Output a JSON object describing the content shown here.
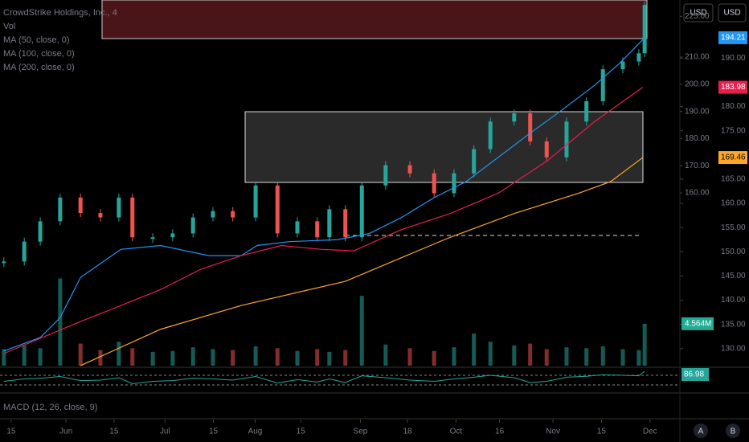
{
  "chart_data": {
    "type": "stock",
    "title": "CrowdStrike Holdings, Inc., 4",
    "currency_buttons": [
      "USD",
      "USD"
    ],
    "scale_buttons": [
      "A",
      "B"
    ],
    "macd_label": "MACD (12, 26, close, 9)",
    "xlim": [
      0,
      140
    ],
    "xticks": [
      {
        "value": 2.3,
        "label": "15"
      },
      {
        "value": 13.6,
        "label": "Jun"
      },
      {
        "value": 23.5,
        "label": "15"
      },
      {
        "value": 34,
        "label": "Jul"
      },
      {
        "value": 44,
        "label": "15"
      },
      {
        "value": 52.6,
        "label": "Aug"
      },
      {
        "value": 62,
        "label": "15"
      },
      {
        "value": 74.3,
        "label": "Sep"
      },
      {
        "value": 84,
        "label": "18"
      },
      {
        "value": 94,
        "label": "Oct"
      },
      {
        "value": 103,
        "label": "16"
      },
      {
        "value": 114,
        "label": "Nov"
      },
      {
        "value": 124,
        "label": "15"
      },
      {
        "value": 134,
        "label": "Dec"
      }
    ],
    "ylim": [
      124,
      202
    ],
    "yticks": [
      {
        "value": 130,
        "label": "130.00"
      },
      {
        "value": 135,
        "label": "135.00"
      },
      {
        "value": 140,
        "label": "140.00"
      },
      {
        "value": 145,
        "label": "145.00"
      },
      {
        "value": 150,
        "label": "150.00"
      },
      {
        "value": 155,
        "label": "155.00"
      },
      {
        "value": 160,
        "label": "160.00"
      },
      {
        "value": 165,
        "label": "165.00"
      },
      {
        "value": 175,
        "label": "175.00"
      },
      {
        "value": 180,
        "label": "180.00"
      },
      {
        "value": 190,
        "label": "190.00"
      }
    ],
    "y2lim": [
      92,
      231
    ],
    "y2ticks": [
      {
        "value": 160,
        "label": "160.00"
      },
      {
        "value": 170,
        "label": "170.00"
      },
      {
        "value": 180,
        "label": "180.00"
      },
      {
        "value": 190,
        "label": "190.00"
      },
      {
        "value": 200,
        "label": "200.00"
      },
      {
        "value": 210,
        "label": "210.00"
      },
      {
        "value": 225,
        "label": "225.00"
      }
    ],
    "price": {
      "up_color": "#26a69a",
      "down_color": "#ef5350",
      "x": [
        0.8,
        5.0,
        8.3,
        12.4,
        16.6,
        20.7,
        24.5,
        27.3,
        31.5,
        35.6,
        39.8,
        43.9,
        48.0,
        52.7,
        57.2,
        61.3,
        65.4,
        67.9,
        71.2,
        74.6,
        79.5,
        84.5,
        89.5,
        93.6,
        97.7,
        101.1,
        106.0,
        109.3,
        112.7,
        116.8,
        120.9,
        124.3,
        128.4,
        131.7,
        132.9
      ],
      "values": [
        148.0,
        152.1,
        156.3,
        161.2,
        158.0,
        157.1,
        161.2,
        153.0,
        153.0,
        153.8,
        157.1,
        158.4,
        157.1,
        163.7,
        153.8,
        156.3,
        153.0,
        158.8,
        153.0,
        163.7,
        167.9,
        166.2,
        162.1,
        166.2,
        171.2,
        176.9,
        178.6,
        172.8,
        169.5,
        176.9,
        181.1,
        187.7,
        189.3,
        191.0,
        201.0
      ]
    },
    "series": [
      {
        "name": "MA (50, close, 0)",
        "color": "#2196f3",
        "x": [
          0.8,
          8.3,
          12.4,
          16.6,
          24.9,
          33.1,
          43.1,
          49.7,
          53.0,
          59.6,
          69.6,
          76.2,
          82.8,
          89.5,
          96.1,
          102.7,
          109.3,
          116.0,
          122.6,
          127.6,
          132.9
        ],
        "values": [
          129.5,
          132.3,
          136.4,
          144.7,
          150.5,
          151.3,
          149.2,
          149.2,
          151.3,
          152.1,
          152.5,
          153.8,
          157.1,
          161.2,
          164.5,
          169.5,
          174.5,
          179.4,
          184.4,
          188.8,
          194.21
        ]
      },
      {
        "name": "MA (100, close, 0)",
        "color": "#e91e4f",
        "x": [
          0.8,
          16.6,
          24.9,
          33.1,
          41.4,
          49.7,
          58.0,
          66.3,
          72.9,
          82.8,
          92.8,
          102.7,
          112.7,
          122.6,
          132.5
        ],
        "values": [
          129,
          135.6,
          138.9,
          142.2,
          146.4,
          149.2,
          151.3,
          150.5,
          150.2,
          154.6,
          157.9,
          162.1,
          168.7,
          176.9,
          183.98
        ]
      },
      {
        "name": "MA (200, close, 0)",
        "color": "#ffa726",
        "x": [
          16.6,
          33.1,
          49.7,
          71.2,
          82.8,
          92.8,
          106.0,
          119.3,
          125.9,
          132.5
        ],
        "values": [
          126.5,
          134,
          138.9,
          143.9,
          148.8,
          153,
          157.9,
          162.1,
          164.5,
          169.46
        ]
      }
    ],
    "volume": {
      "name": "Vol",
      "color": "#22ab94",
      "vlim": [
        0,
        10.5
      ],
      "values": [
        1.8,
        2.2,
        1.9,
        9.5,
        2.4,
        1.7,
        2.6,
        1.9,
        1.5,
        1.6,
        2.0,
        1.8,
        1.7,
        2.1,
        1.9,
        1.6,
        1.8,
        1.5,
        1.7,
        7.6,
        2.3,
        1.9,
        1.6,
        2.0,
        3.5,
        2.6,
        2.2,
        2.4,
        1.8,
        2.0,
        1.9,
        2.1,
        1.8,
        1.7,
        4.564
      ],
      "value_labels": [
        null,
        null,
        null,
        null,
        null,
        null,
        null,
        null,
        null,
        null,
        null,
        null,
        null,
        null,
        null,
        null,
        null,
        null,
        null,
        null,
        null,
        null,
        null,
        null,
        null,
        null,
        null,
        null,
        null,
        null,
        null,
        null,
        null,
        null,
        "4.564M"
      ]
    },
    "rsi": {
      "color": "#26a69a",
      "rlim": [
        0,
        100
      ],
      "values": [
        45,
        55,
        58,
        65,
        48,
        50,
        60,
        35,
        45,
        48,
        58,
        55,
        50,
        65,
        38,
        52,
        42,
        55,
        40,
        68,
        60,
        50,
        45,
        55,
        62,
        70,
        60,
        40,
        45,
        62,
        66,
        72,
        70,
        68,
        86.98
      ]
    }
  }
}
